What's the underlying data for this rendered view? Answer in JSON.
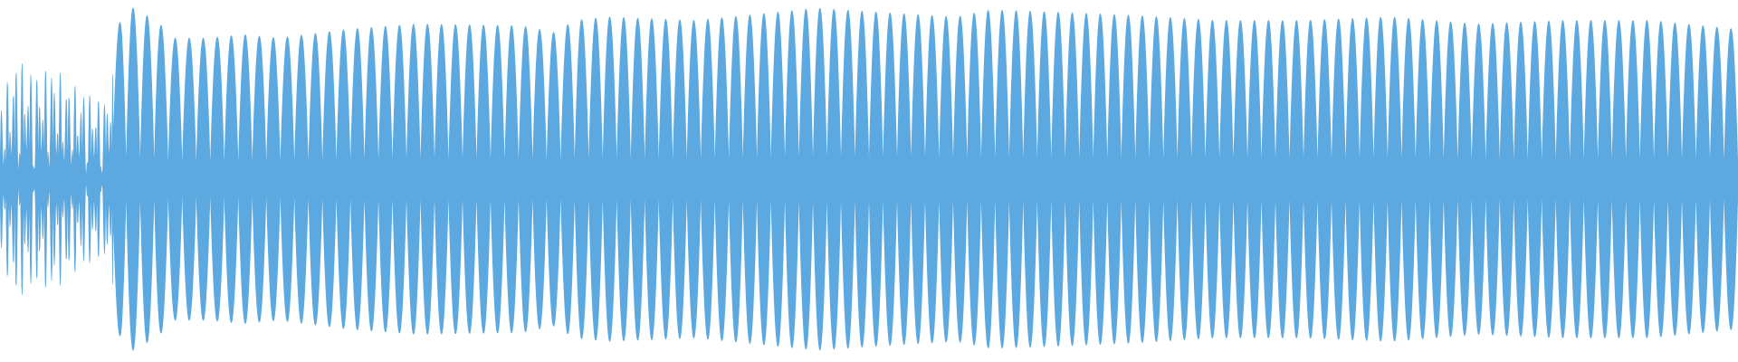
{
  "chart_data": {
    "type": "area",
    "title": "",
    "xlabel": "",
    "ylabel": "",
    "ylim": [
      -1,
      1
    ],
    "grid": false,
    "legend": "none",
    "color": "#5BA9E0",
    "envelope_knots": {
      "x": [
        0,
        0.01,
        0.02,
        0.03,
        0.04,
        0.05,
        0.06,
        0.07,
        0.075,
        0.08,
        0.09,
        0.1,
        0.12,
        0.14,
        0.16,
        0.2,
        0.24,
        0.3,
        0.32,
        0.33,
        0.35,
        0.4,
        0.45,
        0.47,
        0.5,
        0.55,
        0.57,
        0.6,
        0.65,
        0.7,
        0.75,
        0.8,
        0.85,
        0.9,
        0.95,
        1.0
      ],
      "amplitude": [
        0.45,
        0.7,
        0.6,
        0.65,
        0.55,
        0.5,
        0.45,
        0.95,
        0.98,
        0.95,
        0.9,
        0.8,
        0.8,
        0.82,
        0.8,
        0.85,
        0.88,
        0.87,
        0.83,
        0.9,
        0.92,
        0.9,
        0.95,
        0.97,
        0.95,
        0.92,
        0.96,
        0.95,
        0.93,
        0.9,
        0.9,
        0.92,
        0.88,
        0.9,
        0.9,
        0.85
      ]
    },
    "cycles": 62
  }
}
